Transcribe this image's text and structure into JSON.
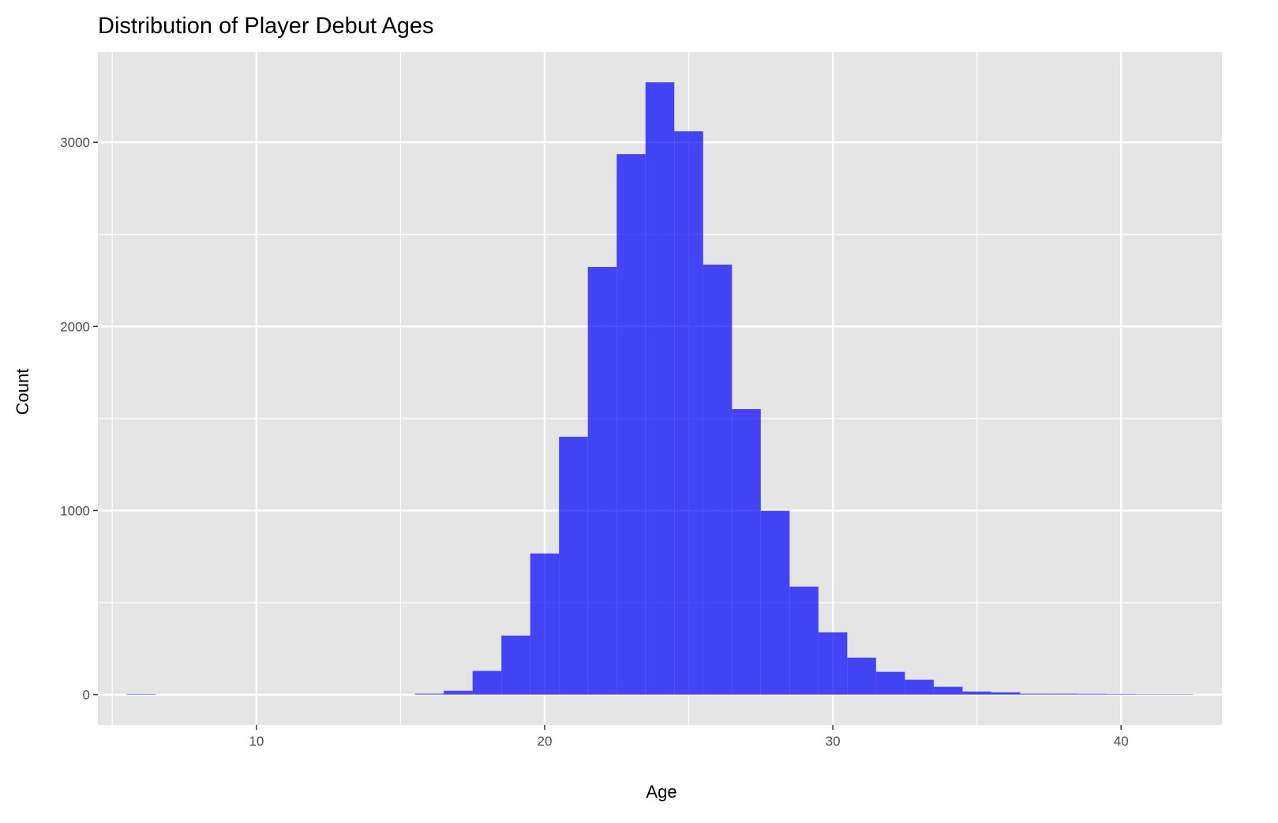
{
  "chart_data": {
    "type": "bar",
    "title": "Distribution of Player Debut Ages",
    "xlabel": "Age",
    "ylabel": "Count",
    "bin_width": 1,
    "x": [
      6,
      16,
      17,
      18,
      19,
      20,
      21,
      22,
      23,
      24,
      25,
      26,
      27,
      28,
      29,
      30,
      31,
      32,
      33,
      34,
      35,
      36,
      37,
      38,
      39,
      40,
      41,
      42
    ],
    "values": [
      3,
      5,
      21,
      129,
      321,
      767,
      1401,
      2323,
      2936,
      3326,
      3060,
      2336,
      1551,
      999,
      587,
      339,
      201,
      124,
      81,
      43,
      17,
      13,
      5,
      5,
      4,
      3,
      2,
      2
    ],
    "xlim": [
      4.5,
      43.5
    ],
    "ylim": [
      -165,
      3490
    ],
    "x_ticks": [
      "10",
      "20",
      "30",
      "40"
    ],
    "y_ticks": [
      "0",
      "1000",
      "2000",
      "3000"
    ],
    "grid": true,
    "bar_color": "#0000ff",
    "bar_opacity": 0.7,
    "panel_background": "#e5e5e5"
  }
}
